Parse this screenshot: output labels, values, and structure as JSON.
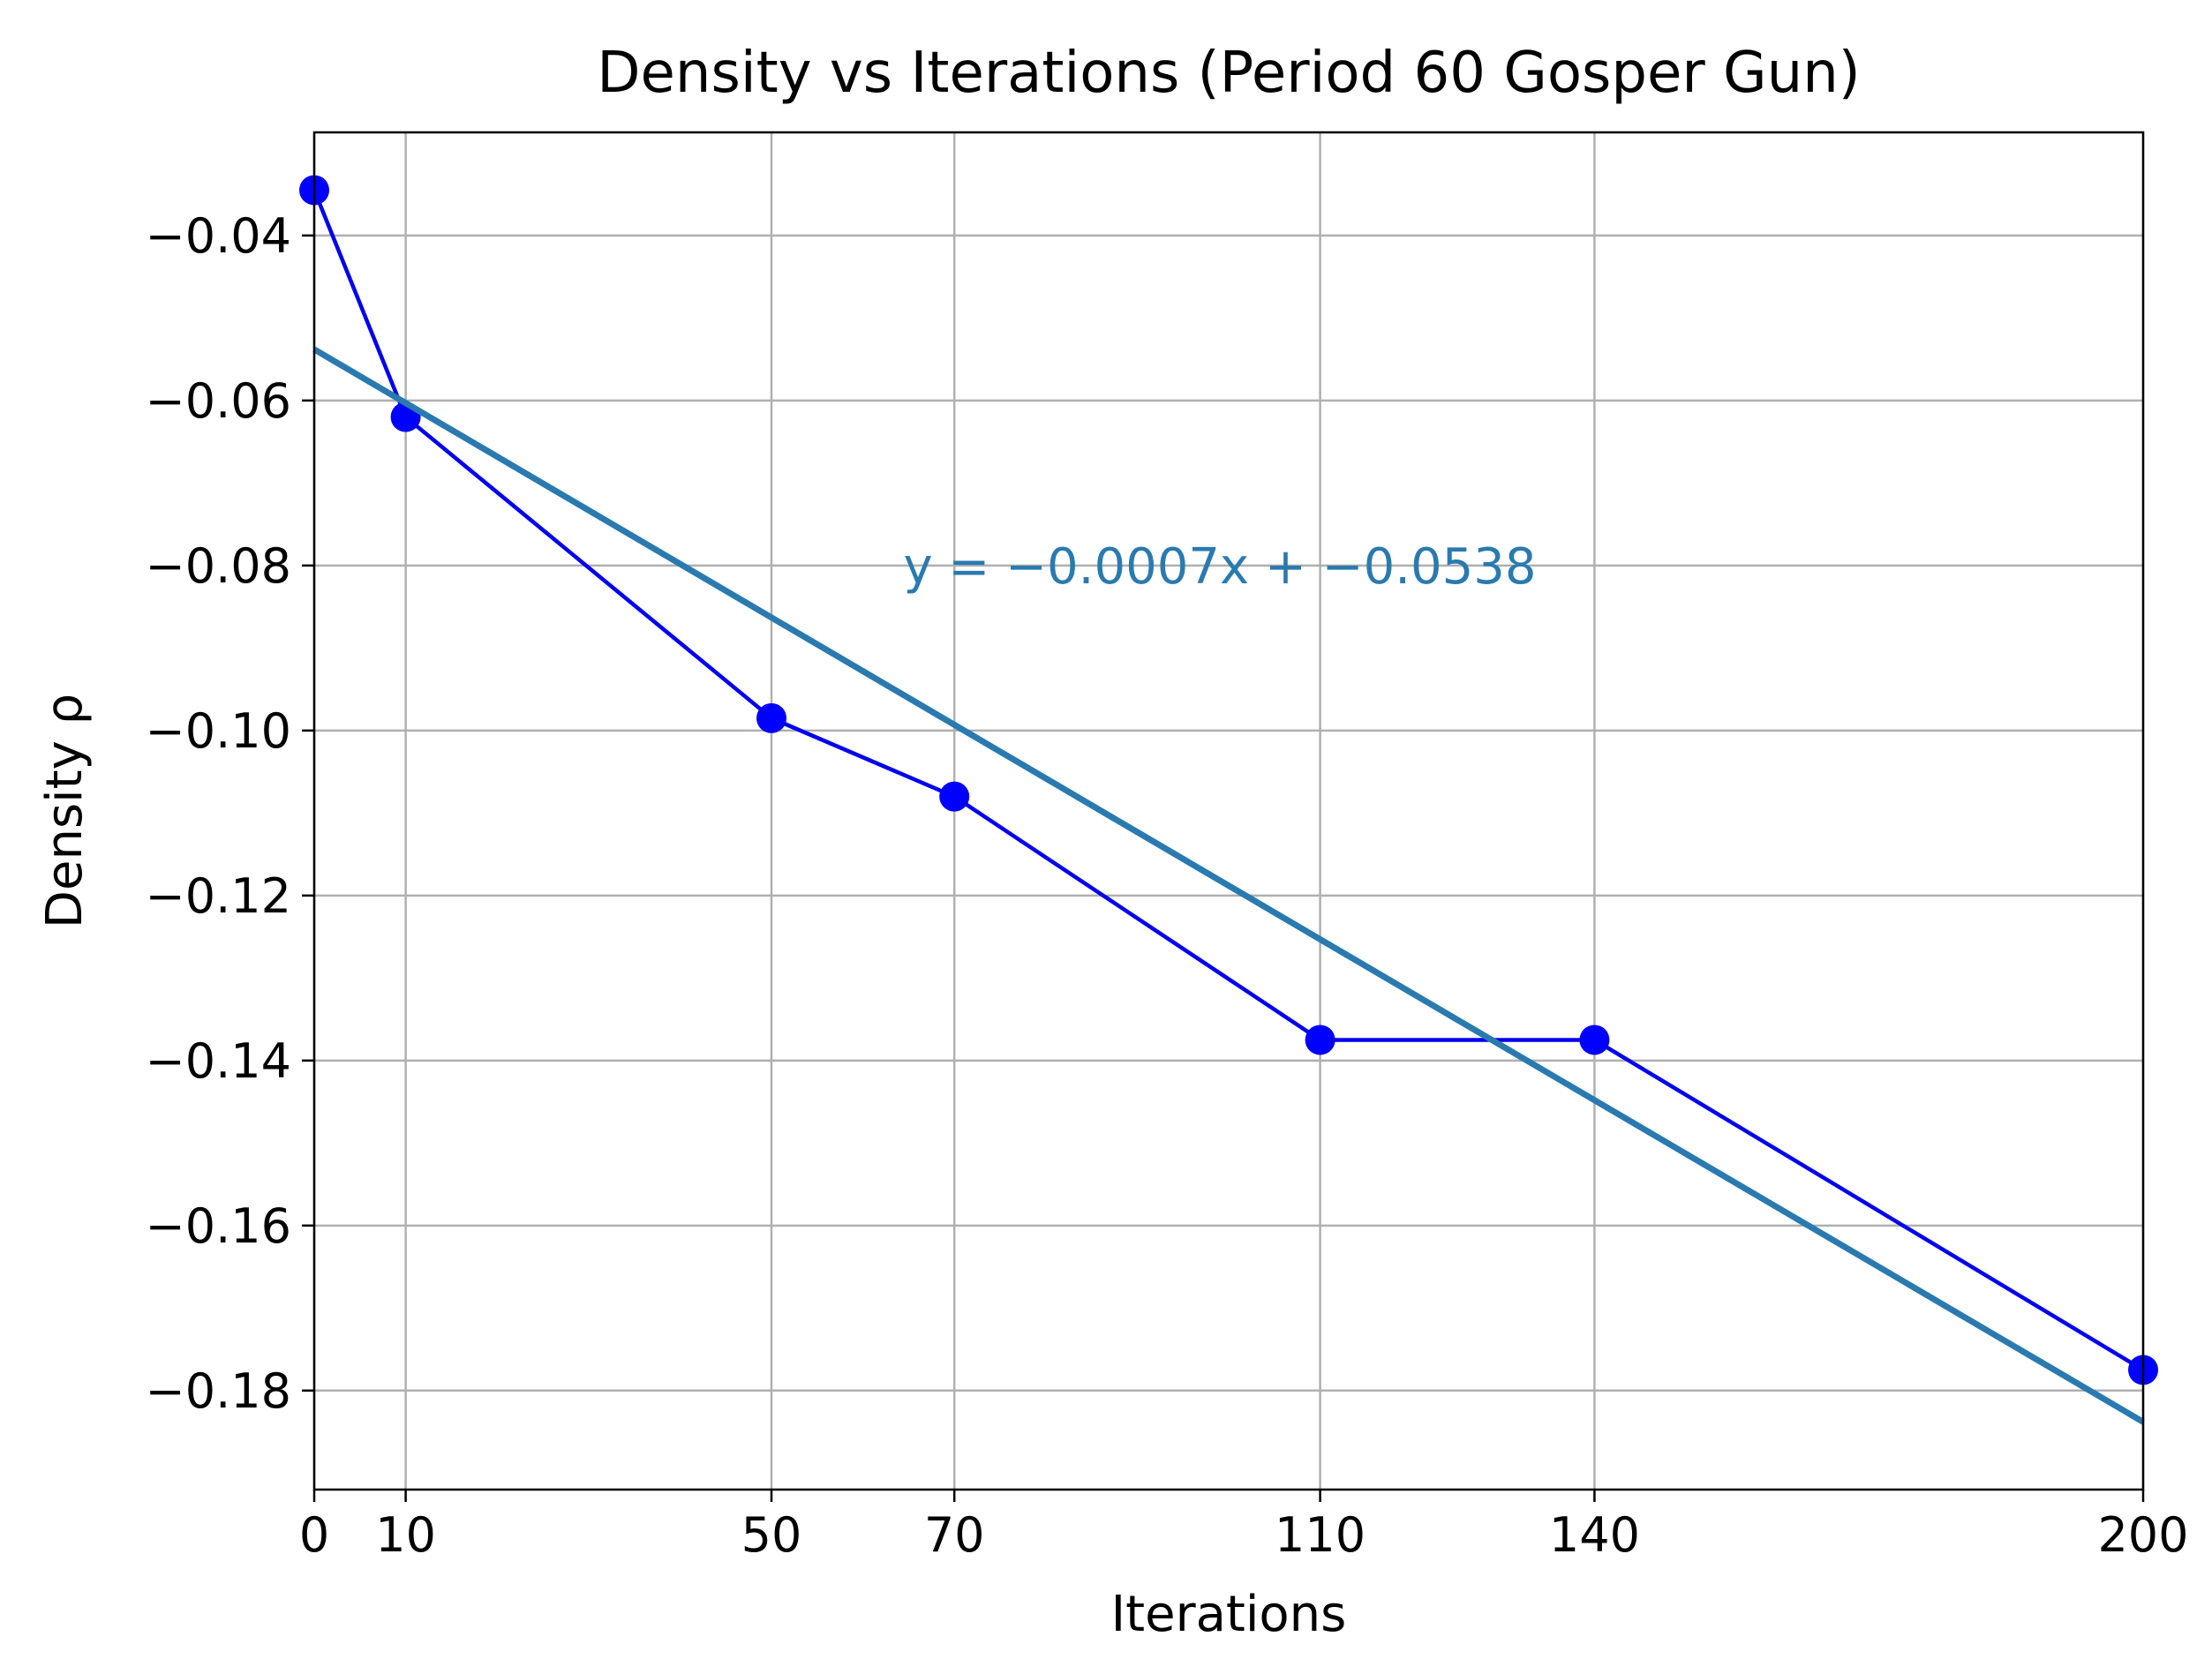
{
  "chart_data": {
    "type": "line",
    "title": "Density vs Iterations (Period 60 Gosper Gun)",
    "xlabel": "Iterations",
    "ylabel": "Density ρ",
    "xlim": [
      0,
      200
    ],
    "ylim": [
      -0.192,
      -0.0275
    ],
    "xticks": [
      0,
      10,
      50,
      70,
      110,
      140,
      200
    ],
    "xtick_labels": [
      "0",
      "10",
      "50",
      "70",
      "110",
      "140",
      "200"
    ],
    "yticks": [
      -0.04,
      -0.06,
      -0.08,
      -0.1,
      -0.12,
      -0.14,
      -0.16,
      -0.18
    ],
    "ytick_labels": [
      "−0.04",
      "−0.06",
      "−0.08",
      "−0.10",
      "−0.12",
      "−0.14",
      "−0.16",
      "−0.18"
    ],
    "grid": true,
    "series": [
      {
        "x": [
          0,
          10,
          50,
          70,
          110,
          140,
          200
        ],
        "y": [
          -0.0345,
          -0.062,
          -0.0985,
          -0.108,
          -0.1375,
          -0.1375,
          -0.1775
        ],
        "color": "#0000ee",
        "marker_color": "#0000ff"
      }
    ],
    "fit_line": {
      "slope": -0.00065,
      "intercept": -0.0538,
      "color": "#2a7ab0"
    },
    "annotation": {
      "text": "y = −0.0007x + −0.0538",
      "x": 100,
      "y": -0.08,
      "color": "#2a7ab0"
    }
  }
}
